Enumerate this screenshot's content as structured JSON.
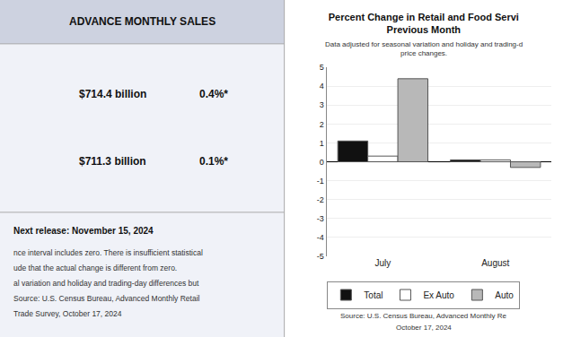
{
  "chart_data": {
    "type": "bar",
    "title": "Percent Change in Retail and Food Servi\nPrevious Month",
    "subtitle": "Data adjusted for seasonal variation and holiday and trading-d\nprice changes.",
    "categories": [
      "July",
      "August"
    ],
    "series": [
      {
        "name": "Total",
        "color": "#111111",
        "values": [
          1.1,
          0.1
        ]
      },
      {
        "name": "Ex Auto",
        "color": "#ffffff",
        "values": [
          0.3,
          0.1
        ]
      },
      {
        "name": "Auto",
        "color": "#b8b8b8",
        "values": [
          4.4,
          -0.3
        ]
      }
    ],
    "ylim": [
      -5,
      5
    ],
    "yticks": [
      -5,
      -4,
      -3,
      -2,
      -1,
      0,
      1,
      2,
      3,
      4,
      5
    ],
    "grid": true,
    "legend": "bottom",
    "annotations": [
      "ADVANCE MONTHLY SALES",
      "$714.4 billion",
      "0.4%*",
      "$711.3 billion",
      "0.1%*",
      "Next release: November 15, 2024",
      "nce interval includes zero. There is insufficient statistical",
      "ude that the actual change is different from zero.",
      "al variation and holiday and trading-day differences but",
      "Source: U.S. Census Bureau, Advanced Monthly Retail",
      "Trade Survey, October 17, 2024",
      "Source: U.S. Census Bureau, Advanced Monthly Re",
      "October 17, 2024"
    ]
  }
}
